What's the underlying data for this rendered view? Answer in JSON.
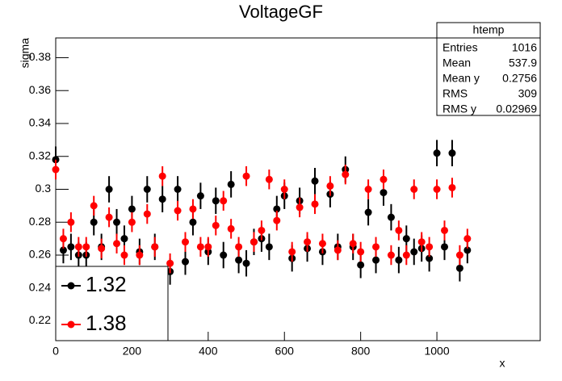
{
  "chart_data": {
    "type": "scatter",
    "title": "VoltageGF",
    "x_label": "x",
    "y_label": "sigma",
    "xlim": [
      0,
      1271
    ],
    "ylim": [
      0.208,
      0.392
    ],
    "xticks": [
      0,
      200,
      400,
      600,
      800,
      1000
    ],
    "yticks": [
      0.22,
      0.24,
      0.26,
      0.28,
      0.3,
      0.32,
      0.34,
      0.36,
      0.38
    ],
    "x": [
      0,
      20,
      40,
      60,
      80,
      100,
      120,
      140,
      160,
      180,
      200,
      220,
      240,
      260,
      280,
      300,
      320,
      340,
      360,
      380,
      400,
      420,
      440,
      460,
      480,
      500,
      520,
      540,
      560,
      580,
      600,
      620,
      640,
      660,
      680,
      700,
      720,
      740,
      760,
      780,
      800,
      820,
      840,
      860,
      880,
      900,
      920,
      940,
      960,
      980,
      1000,
      1020,
      1040,
      1060,
      1080
    ],
    "series": [
      {
        "name": "1.32",
        "color": "#000000",
        "error": 0.008,
        "values": [
          0.318,
          0.263,
          0.265,
          0.26,
          0.26,
          0.28,
          0.265,
          0.3,
          0.28,
          0.27,
          0.288,
          0.262,
          0.3,
          0.265,
          0.294,
          0.25,
          0.3,
          0.256,
          0.28,
          0.296,
          0.262,
          0.293,
          0.26,
          0.303,
          0.257,
          0.255,
          0.268,
          0.27,
          0.265,
          0.288,
          0.296,
          0.258,
          0.293,
          0.264,
          0.305,
          0.262,
          0.297,
          0.265,
          0.312,
          0.265,
          0.254,
          0.286,
          0.257,
          0.298,
          0.283,
          0.257,
          0.27,
          0.262,
          0.264,
          0.258,
          0.322,
          0.265,
          0.322,
          0.252,
          0.263
        ]
      },
      {
        "name": "1.38",
        "color": "#ff0000",
        "error": 0.006,
        "values": [
          0.312,
          0.27,
          0.28,
          0.265,
          0.265,
          0.29,
          0.264,
          0.283,
          0.267,
          0.26,
          0.28,
          0.26,
          0.285,
          0.265,
          0.308,
          0.255,
          0.287,
          0.268,
          0.288,
          0.265,
          0.265,
          0.278,
          0.293,
          0.276,
          0.265,
          0.308,
          0.268,
          0.275,
          0.306,
          0.281,
          0.3,
          0.262,
          0.289,
          0.268,
          0.291,
          0.267,
          0.302,
          0.263,
          0.309,
          0.267,
          0.262,
          0.3,
          0.265,
          0.306,
          0.26,
          0.275,
          0.26,
          0.3,
          0.268,
          0.265,
          0.3,
          0.275,
          0.301,
          0.26,
          0.27
        ]
      }
    ],
    "stats": {
      "title": "htemp",
      "rows": [
        {
          "label": "Entries",
          "value": 1016
        },
        {
          "label": "Mean",
          "value": 537.9
        },
        {
          "label": "Mean y",
          "value": 0.2756
        },
        {
          "label": "RMS",
          "value": 309
        },
        {
          "label": "RMS y",
          "value": 0.02969
        }
      ]
    }
  }
}
